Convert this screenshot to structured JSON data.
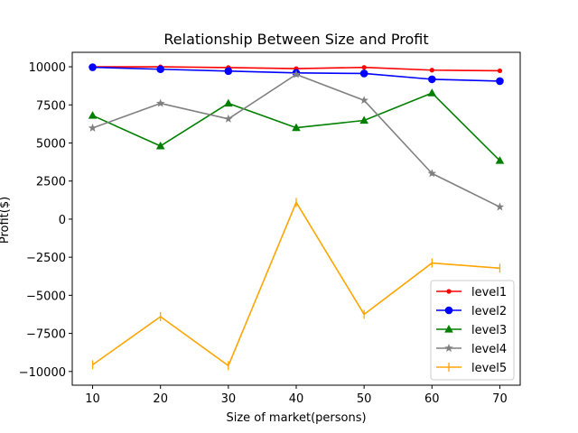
{
  "chart_data": {
    "type": "line",
    "title": "Relationship Between Size and Profit",
    "xlabel": "Size of market(persons)",
    "ylabel": "Profit($)",
    "x": [
      10,
      20,
      30,
      40,
      50,
      60,
      70
    ],
    "xlim": [
      7,
      73
    ],
    "ylim": [
      -10900,
      10950
    ],
    "x_ticks": [
      10,
      20,
      30,
      40,
      50,
      60,
      70
    ],
    "y_ticks": [
      -10000,
      -7500,
      -5000,
      -2500,
      0,
      2500,
      5000,
      7500,
      10000
    ],
    "grid": false,
    "legend_position": "lower-right",
    "series": [
      {
        "name": "level1",
        "color": "#ff0000",
        "marker": "point",
        "values": [
          10000,
          10000,
          9950,
          9880,
          9960,
          9780,
          9740
        ]
      },
      {
        "name": "level2",
        "color": "#0000ff",
        "marker": "circle",
        "values": [
          9970,
          9840,
          9720,
          9600,
          9560,
          9180,
          9060
        ]
      },
      {
        "name": "level3",
        "color": "#008000",
        "marker": "triangle",
        "values": [
          6800,
          4800,
          7600,
          6000,
          6480,
          8280,
          3840
        ]
      },
      {
        "name": "level4",
        "color": "#808080",
        "marker": "star",
        "values": [
          5980,
          7600,
          6580,
          9500,
          7800,
          3000,
          800
        ]
      },
      {
        "name": "level5",
        "color": "#ffa500",
        "marker": "thin-vline",
        "values": [
          -9560,
          -6400,
          -9620,
          1100,
          -6250,
          -2880,
          -3220
        ]
      }
    ]
  }
}
